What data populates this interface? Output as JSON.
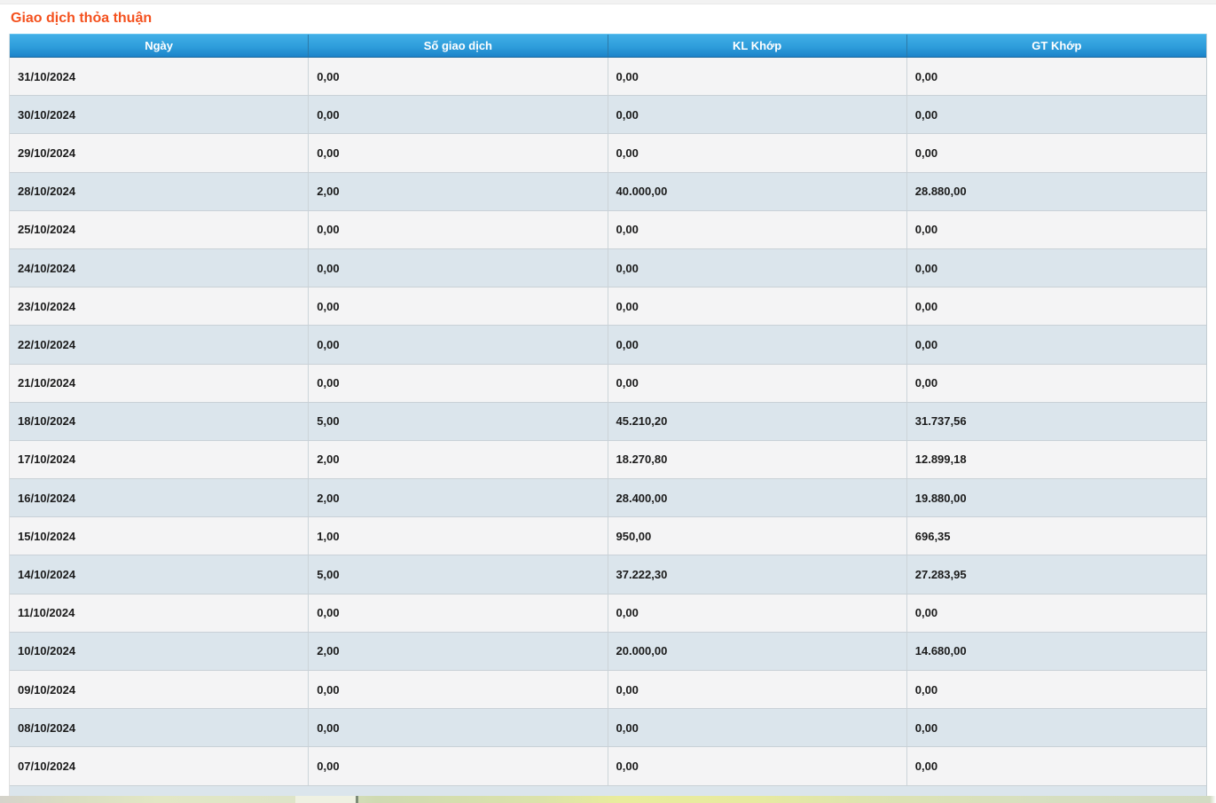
{
  "title": "Giao dịch thỏa thuận",
  "table": {
    "columns": [
      {
        "key": "ngay",
        "label": "Ngày"
      },
      {
        "key": "so-giao-dich",
        "label": "Số giao dịch"
      },
      {
        "key": "kl-khop",
        "label": "KL Khớp"
      },
      {
        "key": "gt-khop",
        "label": "GT Khớp"
      }
    ],
    "rows": [
      [
        "31/10/2024",
        "0,00",
        "0,00",
        "0,00"
      ],
      [
        "30/10/2024",
        "0,00",
        "0,00",
        "0,00"
      ],
      [
        "29/10/2024",
        "0,00",
        "0,00",
        "0,00"
      ],
      [
        "28/10/2024",
        "2,00",
        "40.000,00",
        "28.880,00"
      ],
      [
        "25/10/2024",
        "0,00",
        "0,00",
        "0,00"
      ],
      [
        "24/10/2024",
        "0,00",
        "0,00",
        "0,00"
      ],
      [
        "23/10/2024",
        "0,00",
        "0,00",
        "0,00"
      ],
      [
        "22/10/2024",
        "0,00",
        "0,00",
        "0,00"
      ],
      [
        "21/10/2024",
        "0,00",
        "0,00",
        "0,00"
      ],
      [
        "18/10/2024",
        "5,00",
        "45.210,20",
        "31.737,56"
      ],
      [
        "17/10/2024",
        "2,00",
        "18.270,80",
        "12.899,18"
      ],
      [
        "16/10/2024",
        "2,00",
        "28.400,00",
        "19.880,00"
      ],
      [
        "15/10/2024",
        "1,00",
        "950,00",
        "696,35"
      ],
      [
        "14/10/2024",
        "5,00",
        "37.222,30",
        "27.283,95"
      ],
      [
        "11/10/2024",
        "0,00",
        "0,00",
        "0,00"
      ],
      [
        "10/10/2024",
        "2,00",
        "20.000,00",
        "14.680,00"
      ],
      [
        "09/10/2024",
        "0,00",
        "0,00",
        "0,00"
      ],
      [
        "08/10/2024",
        "0,00",
        "0,00",
        "0,00"
      ],
      [
        "07/10/2024",
        "0,00",
        "0,00",
        "0,00"
      ]
    ]
  },
  "colors": {
    "title_orange": "#f4511e",
    "header_blue_top": "#41afe7",
    "header_blue_bottom": "#1c83c9",
    "row_light": "#f4f4f5",
    "row_alt_blue": "#dbe5ec"
  }
}
